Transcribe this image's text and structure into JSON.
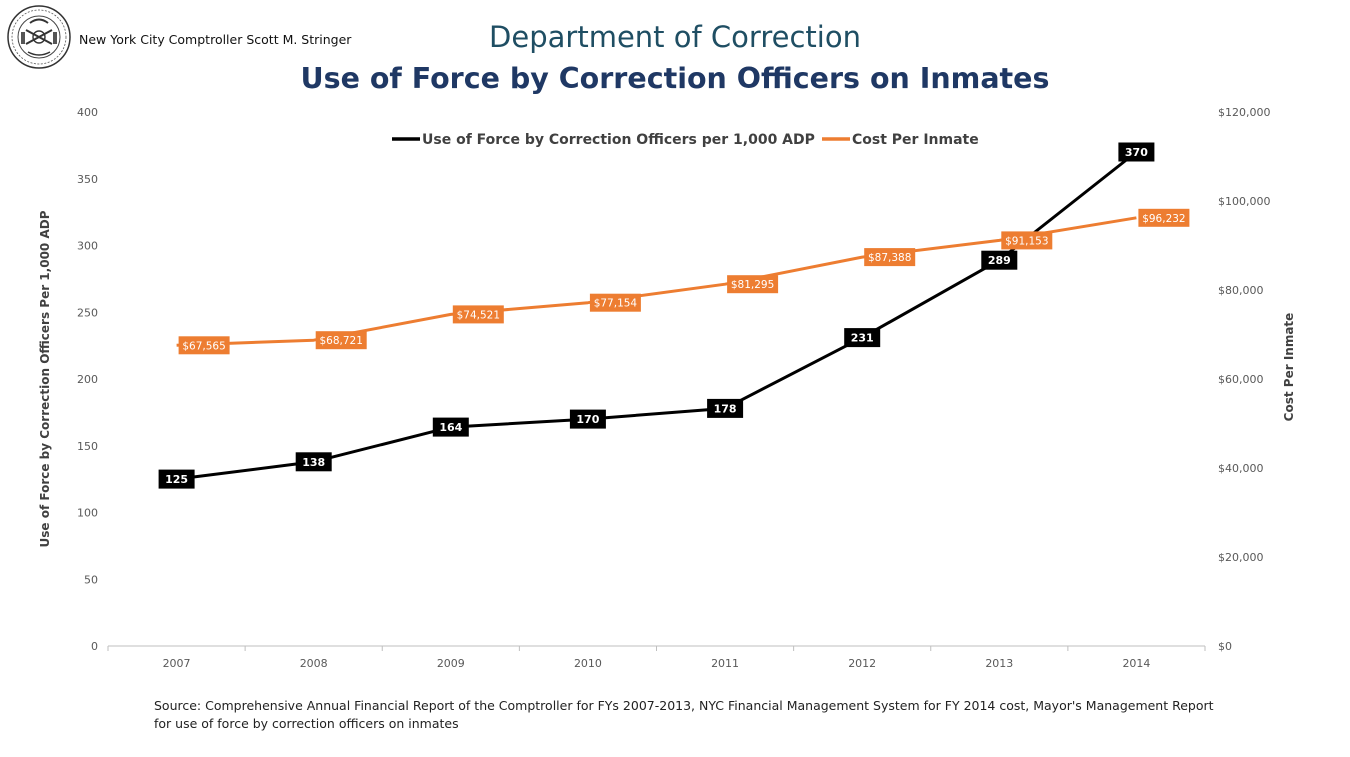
{
  "header": {
    "credit": "New York City Comptroller Scott M. Stringer",
    "department": "Department of Correction"
  },
  "colors": {
    "force_series": "#000000",
    "cost_series": "#ed7d31",
    "title": "#1f3864",
    "department": "#1f4e63"
  },
  "chart_data": {
    "type": "line",
    "title": "Use of Force by Correction Officers on Inmates",
    "categories": [
      "2007",
      "2008",
      "2009",
      "2010",
      "2011",
      "2012",
      "2013",
      "2014"
    ],
    "ylabel": "Use of Force by Correction Officers Per 1,000 ADP",
    "y2label": "Cost Per Inmate",
    "ylim": [
      0,
      400
    ],
    "yticks": [
      "0",
      "50",
      "100",
      "150",
      "200",
      "250",
      "300",
      "350",
      "400"
    ],
    "y2lim": [
      0,
      120000
    ],
    "y2ticks": [
      "$0",
      "$20,000",
      "$40,000",
      "$60,000",
      "$80,000",
      "$100,000",
      "$120,000"
    ],
    "legend_position": "top",
    "grid": false,
    "series": [
      {
        "name": "Use of Force by Correction Officers per 1,000 ADP",
        "axis": "left",
        "color": "#000000",
        "values": [
          125,
          138,
          164,
          170,
          178,
          231,
          289,
          370
        ],
        "labels": [
          "125",
          "138",
          "164",
          "170",
          "178",
          "231",
          "289",
          "370"
        ]
      },
      {
        "name": "Cost Per Inmate",
        "axis": "right",
        "color": "#ed7d31",
        "values": [
          67565,
          68721,
          74521,
          77154,
          81295,
          87388,
          91153,
          96232
        ],
        "labels": [
          "$67,565",
          "$68,721",
          "$74,521",
          "$77,154",
          "$81,295",
          "$87,388",
          "$91,153",
          "$96,232"
        ]
      }
    ]
  },
  "footer": {
    "source": "Source: Comprehensive Annual Financial Report of the Comptroller for FYs 2007-2013, NYC Financial Management System for FY 2014 cost, Mayor's Management Report for use of force by correction officers on inmates"
  }
}
